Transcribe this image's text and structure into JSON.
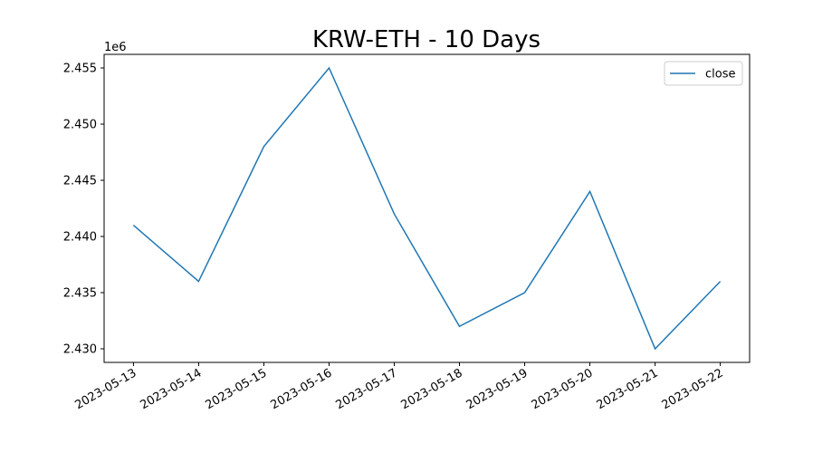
{
  "chart_data": {
    "type": "line",
    "title": "KRW-ETH - 10 Days",
    "x": [
      "2023-05-13",
      "2023-05-14",
      "2023-05-15",
      "2023-05-16",
      "2023-05-17",
      "2023-05-18",
      "2023-05-19",
      "2023-05-20",
      "2023-05-21",
      "2023-05-22"
    ],
    "series": [
      {
        "name": "close",
        "color": "#1f77b4",
        "values": [
          2441000,
          2436000,
          2448000,
          2455000,
          2442000,
          2432000,
          2435000,
          2444000,
          2430000,
          2436000
        ]
      }
    ],
    "xlim": [
      "2023-05-13",
      "2023-05-22"
    ],
    "xticks": [
      "2023-05-13",
      "2023-05-14",
      "2023-05-15",
      "2023-05-16",
      "2023-05-17",
      "2023-05-18",
      "2023-05-19",
      "2023-05-20",
      "2023-05-21",
      "2023-05-22"
    ],
    "ylim": [
      2428790,
      2456210
    ],
    "yticks": [
      {
        "value": 2430000,
        "label": "2.430"
      },
      {
        "value": 2435000,
        "label": "2.435"
      },
      {
        "value": 2440000,
        "label": "2.440"
      },
      {
        "value": 2445000,
        "label": "2.445"
      },
      {
        "value": 2450000,
        "label": "2.450"
      },
      {
        "value": 2455000,
        "label": "2.455"
      }
    ],
    "y_offset_label": "1e6",
    "legend": "upper right",
    "grid": false
  }
}
